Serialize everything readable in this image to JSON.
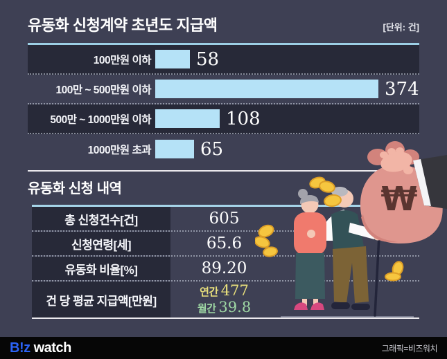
{
  "colors": {
    "background": "#3e4054",
    "row_dark": "#272938",
    "bar_fill": "#b5e2f7",
    "accent_border": "#9ccfe5",
    "annual_yellow": "#e9e07c",
    "monthly_green": "#9fd8a4",
    "logo_blue": "#2b63f6",
    "money_bag_pink": "#df968e",
    "coin_gold": "#f6c63f"
  },
  "chart_data": [
    {
      "type": "bar",
      "orientation": "horizontal",
      "title": "유동화 신청계약 초년도 지급액",
      "unit_label": "[단위: 건]",
      "categories": [
        "100만원 이하",
        "100만 ~ 500만원 이하",
        "500만 ~ 1000만원 이하",
        "1000만원 초과"
      ],
      "values": [
        58,
        374,
        108,
        65
      ],
      "xlim": [
        0,
        374
      ],
      "bar_color": "#b5e2f7",
      "value_labels_shown": true,
      "grid": false,
      "legend": "none"
    },
    {
      "type": "table",
      "title": "유동화 신청 내역",
      "rows": [
        {
          "label": "총 신청건수[건]",
          "value": "605"
        },
        {
          "label": "신청연령[세]",
          "value": "65.6"
        },
        {
          "label": "유동화 비율[%]",
          "value": "89.20"
        },
        {
          "label": "건 당 평균 지급액[만원]",
          "value": "연간 477 / 월간 39.8",
          "lines": [
            {
              "prefix": "연간",
              "value": "477",
              "color": "#e9e07c"
            },
            {
              "prefix": "월간",
              "value": "39.8",
              "color": "#9fd8a4"
            }
          ]
        }
      ]
    }
  ],
  "illustration": {
    "description": "Elderly couple walking with cane toward a large pink money bag marked with a won sign, held by a hand in a dark suit; gold coins scattered",
    "won_symbol": "₩"
  },
  "footer": {
    "logo_biz": "B!z",
    "logo_watch": "watch",
    "credit": "그래픽=비즈워치"
  }
}
